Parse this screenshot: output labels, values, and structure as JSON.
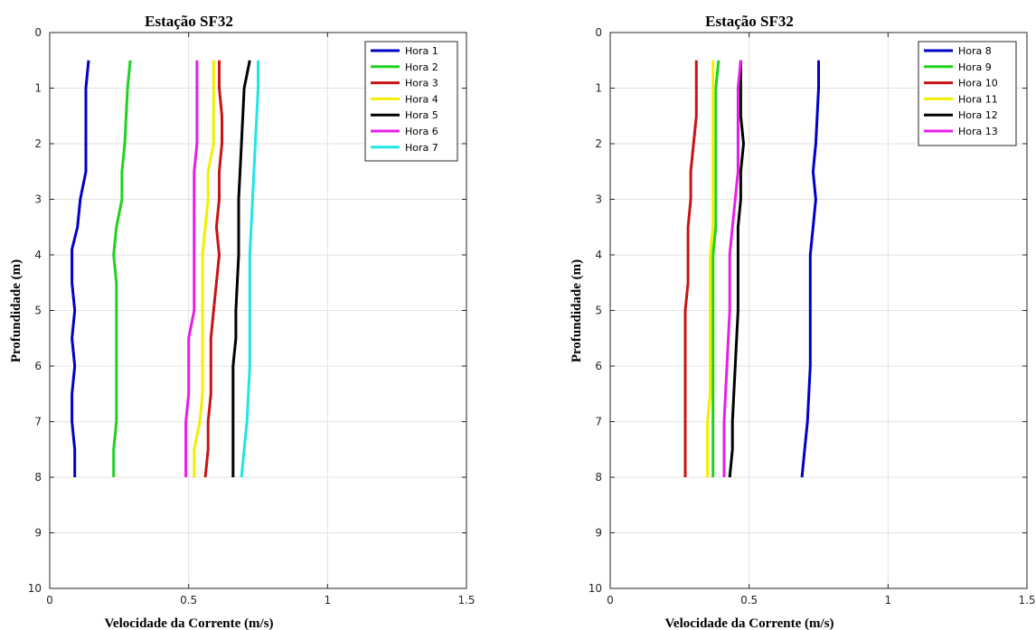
{
  "figure": {
    "background": "#ffffff"
  },
  "chart_data": [
    {
      "type": "line",
      "title": "Estação SF32",
      "xlabel": "Velocidade da Corrente (m/s)",
      "ylabel": "Profundidade (m)",
      "xlim": [
        0,
        1.5
      ],
      "ylim": [
        0,
        10
      ],
      "y_reversed": true,
      "x_ticks": [
        "0",
        "0.5",
        "1",
        "1.5"
      ],
      "y_ticks": [
        "0",
        "1",
        "2",
        "3",
        "4",
        "5",
        "6",
        "7",
        "8",
        "9",
        "10"
      ],
      "grid": true,
      "legend_position": "top-right",
      "series": [
        {
          "name": "Hora 1",
          "color": "#0000c8",
          "depth": [
            0.5,
            1.0,
            2.0,
            2.5,
            3.0,
            3.5,
            3.9,
            4.5,
            5.0,
            5.5,
            6.0,
            6.5,
            7.0,
            7.5,
            8.0
          ],
          "velocity": [
            0.14,
            0.13,
            0.13,
            0.13,
            0.11,
            0.1,
            0.08,
            0.08,
            0.09,
            0.08,
            0.09,
            0.08,
            0.08,
            0.09,
            0.09
          ]
        },
        {
          "name": "Hora 2",
          "color": "#1fd21f",
          "depth": [
            0.5,
            1.0,
            2.0,
            2.5,
            3.0,
            3.5,
            4.0,
            4.5,
            5.0,
            5.5,
            6.0,
            6.5,
            7.0,
            7.5,
            8.0
          ],
          "velocity": [
            0.29,
            0.28,
            0.27,
            0.26,
            0.26,
            0.24,
            0.23,
            0.24,
            0.24,
            0.24,
            0.24,
            0.24,
            0.24,
            0.23,
            0.23
          ]
        },
        {
          "name": "Hora 3",
          "color": "#c81414",
          "depth": [
            0.5,
            1.0,
            1.5,
            2.0,
            2.5,
            3.0,
            3.5,
            4.0,
            4.5,
            5.0,
            5.5,
            6.0,
            6.5,
            7.0,
            7.5,
            8.0
          ],
          "velocity": [
            0.61,
            0.61,
            0.62,
            0.62,
            0.61,
            0.61,
            0.6,
            0.61,
            0.6,
            0.59,
            0.58,
            0.58,
            0.58,
            0.57,
            0.57,
            0.56
          ]
        },
        {
          "name": "Hora 4",
          "color": "#f0f000",
          "depth": [
            0.5,
            1.0,
            2.0,
            2.5,
            3.0,
            3.5,
            4.0,
            4.5,
            5.0,
            5.5,
            6.0,
            6.5,
            7.0,
            7.5,
            8.0
          ],
          "velocity": [
            0.59,
            0.59,
            0.59,
            0.57,
            0.57,
            0.56,
            0.55,
            0.55,
            0.55,
            0.55,
            0.55,
            0.55,
            0.54,
            0.52,
            0.52
          ]
        },
        {
          "name": "Hora 5",
          "color": "#000000",
          "depth": [
            0.5,
            1.0,
            2.0,
            3.0,
            4.0,
            5.0,
            5.5,
            6.0,
            6.5,
            7.0,
            7.5,
            8.0
          ],
          "velocity": [
            0.72,
            0.7,
            0.69,
            0.68,
            0.68,
            0.67,
            0.67,
            0.66,
            0.66,
            0.66,
            0.66,
            0.66
          ]
        },
        {
          "name": "Hora 6",
          "color": "#e61ee6",
          "depth": [
            0.5,
            1.0,
            2.0,
            2.5,
            3.0,
            3.5,
            4.0,
            5.0,
            5.5,
            6.0,
            6.5,
            7.0,
            7.5,
            8.0
          ],
          "velocity": [
            0.53,
            0.53,
            0.53,
            0.52,
            0.52,
            0.52,
            0.52,
            0.52,
            0.5,
            0.5,
            0.5,
            0.49,
            0.49,
            0.49
          ]
        },
        {
          "name": "Hora 7",
          "color": "#1fe6e6",
          "depth": [
            0.5,
            1.0,
            2.0,
            3.0,
            4.0,
            5.0,
            6.0,
            7.0,
            7.5,
            8.0
          ],
          "velocity": [
            0.75,
            0.75,
            0.74,
            0.73,
            0.72,
            0.72,
            0.72,
            0.71,
            0.7,
            0.69
          ]
        }
      ]
    },
    {
      "type": "line",
      "title": "Estação SF32",
      "xlabel": "Velocidade da Corrente (m/s)",
      "ylabel": "Profundidade (m)",
      "xlim": [
        0,
        1.5
      ],
      "ylim": [
        0,
        10
      ],
      "y_reversed": true,
      "x_ticks": [
        "0",
        "0.5",
        "1",
        "1.5"
      ],
      "y_ticks": [
        "0",
        "1",
        "2",
        "3",
        "4",
        "5",
        "6",
        "7",
        "8",
        "9",
        "10"
      ],
      "grid": true,
      "legend_position": "top-right",
      "series": [
        {
          "name": "Hora 8",
          "color": "#0000c8",
          "depth": [
            0.5,
            1.0,
            2.0,
            2.5,
            3.0,
            3.5,
            4.0,
            5.0,
            6.0,
            7.0,
            7.5,
            8.0
          ],
          "velocity": [
            0.75,
            0.75,
            0.74,
            0.73,
            0.74,
            0.73,
            0.72,
            0.72,
            0.72,
            0.71,
            0.7,
            0.69
          ]
        },
        {
          "name": "Hora 9",
          "color": "#1fd21f",
          "depth": [
            0.5,
            1.0,
            2.0,
            3.0,
            3.5,
            4.0,
            5.0,
            6.0,
            7.0,
            8.0
          ],
          "velocity": [
            0.39,
            0.38,
            0.38,
            0.38,
            0.38,
            0.37,
            0.37,
            0.37,
            0.37,
            0.37
          ]
        },
        {
          "name": "Hora 10",
          "color": "#c81414",
          "depth": [
            0.5,
            1.0,
            1.5,
            2.0,
            2.5,
            3.0,
            3.5,
            4.0,
            4.5,
            5.0,
            6.0,
            7.0,
            8.0
          ],
          "velocity": [
            0.31,
            0.31,
            0.31,
            0.3,
            0.29,
            0.29,
            0.28,
            0.28,
            0.28,
            0.27,
            0.27,
            0.27,
            0.27
          ]
        },
        {
          "name": "Hora 11",
          "color": "#f0f000",
          "depth": [
            0.5,
            1.0,
            2.0,
            3.0,
            3.5,
            4.0,
            5.0,
            6.0,
            6.5,
            7.0,
            8.0
          ],
          "velocity": [
            0.37,
            0.37,
            0.37,
            0.37,
            0.37,
            0.36,
            0.36,
            0.36,
            0.36,
            0.35,
            0.35
          ]
        },
        {
          "name": "Hora 12",
          "color": "#000000",
          "depth": [
            0.5,
            1.0,
            1.5,
            2.0,
            2.5,
            3.0,
            3.5,
            4.0,
            5.0,
            6.0,
            7.0,
            7.5,
            8.0
          ],
          "velocity": [
            0.47,
            0.47,
            0.47,
            0.48,
            0.47,
            0.47,
            0.46,
            0.46,
            0.46,
            0.45,
            0.44,
            0.44,
            0.43
          ]
        },
        {
          "name": "Hora 13",
          "color": "#e61ee6",
          "depth": [
            0.5,
            1.0,
            1.5,
            2.0,
            2.5,
            3.0,
            3.5,
            4.0,
            5.0,
            6.0,
            7.0,
            7.5,
            8.0
          ],
          "velocity": [
            0.47,
            0.46,
            0.46,
            0.46,
            0.46,
            0.45,
            0.44,
            0.43,
            0.43,
            0.42,
            0.41,
            0.41,
            0.41
          ]
        }
      ]
    }
  ]
}
